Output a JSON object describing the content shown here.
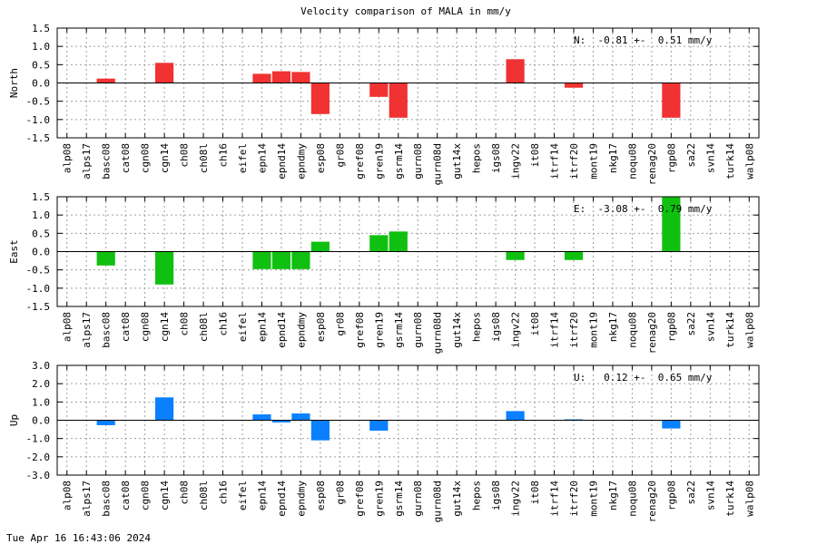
{
  "timestamp": "Tue Apr 16 16:43:06 2024",
  "chart_data": {
    "type": "bar",
    "title": "Velocity comparison of MALA in mm/y",
    "categories": [
      "alp08",
      "alps17",
      "basc08",
      "cat08",
      "cgn08",
      "cgn14",
      "ch08",
      "ch08l",
      "ch16",
      "eifel",
      "epn14",
      "epnd14",
      "epndmy",
      "esp08",
      "gr08",
      "gref08",
      "gren19",
      "gsrm14",
      "gurn08",
      "gurn08d",
      "gut14x",
      "hepos",
      "igs08",
      "ingv22",
      "it08",
      "itrf14",
      "itrf20",
      "mont19",
      "nkg17",
      "noqu08",
      "renag20",
      "rgp08",
      "sa22",
      "svn14",
      "turk14",
      "walp08"
    ],
    "panels": [
      {
        "name": "north",
        "ylabel": "North",
        "color": "#f03232",
        "ylim": [
          -1.5,
          1.5
        ],
        "yticks": [
          "-1.5",
          "-1.0",
          "-0.5",
          "0.0",
          "0.5",
          "1.0",
          "1.5"
        ],
        "summary": "N:  -0.81 +-  0.51 mm/y",
        "values": [
          null,
          null,
          0.12,
          null,
          null,
          0.55,
          null,
          null,
          null,
          null,
          0.25,
          0.32,
          0.3,
          -0.85,
          null,
          null,
          -0.38,
          -0.95,
          null,
          null,
          null,
          null,
          null,
          0.65,
          null,
          null,
          -0.13,
          null,
          null,
          null,
          null,
          -0.95,
          null,
          null,
          null,
          null
        ]
      },
      {
        "name": "east",
        "ylabel": "East",
        "color": "#10c010",
        "ylim": [
          -1.5,
          1.5
        ],
        "yticks": [
          "-1.5",
          "-1.0",
          "-0.5",
          "0.0",
          "0.5",
          "1.0",
          "1.5"
        ],
        "summary": "E:  -3.08 +-  0.79 mm/y",
        "values": [
          null,
          null,
          -0.38,
          null,
          null,
          -0.9,
          null,
          null,
          null,
          null,
          -0.48,
          -0.48,
          -0.48,
          0.27,
          null,
          null,
          0.45,
          0.55,
          null,
          null,
          null,
          null,
          null,
          -0.23,
          null,
          null,
          -0.23,
          null,
          null,
          null,
          null,
          1.5,
          null,
          null,
          null,
          null
        ]
      },
      {
        "name": "up",
        "ylabel": "Up",
        "color": "#0a80ff",
        "ylim": [
          -3.0,
          3.0
        ],
        "yticks": [
          "-3.0",
          "-2.0",
          "-1.0",
          "0.0",
          "1.0",
          "2.0",
          "3.0"
        ],
        "summary": "U:   0.12 +-  0.65 mm/y",
        "values": [
          null,
          null,
          -0.27,
          null,
          null,
          1.25,
          null,
          null,
          null,
          null,
          0.32,
          -0.12,
          0.37,
          -1.1,
          null,
          null,
          -0.57,
          null,
          null,
          null,
          null,
          null,
          null,
          0.5,
          null,
          null,
          0.05,
          null,
          null,
          null,
          null,
          -0.45,
          null,
          null,
          null,
          null
        ]
      }
    ]
  }
}
